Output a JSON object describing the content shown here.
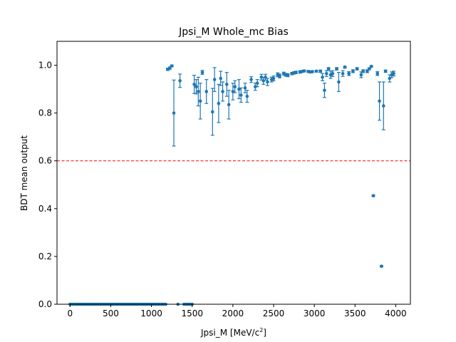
{
  "chart_data": {
    "type": "scatter",
    "title": "Jpsi_M Whole_mc Bias",
    "xlabel": "Jpsi_M [MeV/c",
    "xlabel_sup": "2",
    "xlabel_suffix": "]",
    "ylabel": "BDT mean output",
    "xlim": [
      -160,
      4180
    ],
    "ylim": [
      0.0,
      1.1
    ],
    "xticks": [
      0,
      500,
      1000,
      1500,
      2000,
      2500,
      3000,
      3500,
      4000
    ],
    "yticks": [
      0.0,
      0.2,
      0.4,
      0.6,
      0.8,
      1.0
    ],
    "xtick_labels": [
      "0",
      "500",
      "1000",
      "1500",
      "2000",
      "2500",
      "3000",
      "3500",
      "4000"
    ],
    "ytick_labels": [
      "0.0",
      "0.2",
      "0.4",
      "0.6",
      "0.8",
      "1.0"
    ],
    "grid": false,
    "threshold": {
      "y": 0.6,
      "color": "#ff0000",
      "style": "dashed"
    },
    "marker_color": "#1f77b4",
    "points": [
      {
        "x": 0,
        "y": 0.0,
        "err": 0.0
      },
      {
        "x": 25,
        "y": 0.0,
        "err": 0.0
      },
      {
        "x": 50,
        "y": 0.0,
        "err": 0.0
      },
      {
        "x": 75,
        "y": 0.0,
        "err": 0.0
      },
      {
        "x": 100,
        "y": 0.0,
        "err": 0.0
      },
      {
        "x": 125,
        "y": 0.0,
        "err": 0.0
      },
      {
        "x": 150,
        "y": 0.0,
        "err": 0.0
      },
      {
        "x": 175,
        "y": 0.0,
        "err": 0.0
      },
      {
        "x": 200,
        "y": 0.0,
        "err": 0.0
      },
      {
        "x": 225,
        "y": 0.0,
        "err": 0.0
      },
      {
        "x": 250,
        "y": 0.0,
        "err": 0.0
      },
      {
        "x": 275,
        "y": 0.0,
        "err": 0.0
      },
      {
        "x": 300,
        "y": 0.0,
        "err": 0.0
      },
      {
        "x": 325,
        "y": 0.0,
        "err": 0.0
      },
      {
        "x": 350,
        "y": 0.0,
        "err": 0.0
      },
      {
        "x": 375,
        "y": 0.0,
        "err": 0.0
      },
      {
        "x": 400,
        "y": 0.0,
        "err": 0.0
      },
      {
        "x": 425,
        "y": 0.0,
        "err": 0.0
      },
      {
        "x": 450,
        "y": 0.0,
        "err": 0.0
      },
      {
        "x": 475,
        "y": 0.0,
        "err": 0.0
      },
      {
        "x": 500,
        "y": 0.0,
        "err": 0.0
      },
      {
        "x": 525,
        "y": 0.0,
        "err": 0.0
      },
      {
        "x": 550,
        "y": 0.0,
        "err": 0.0
      },
      {
        "x": 575,
        "y": 0.0,
        "err": 0.0
      },
      {
        "x": 600,
        "y": 0.0,
        "err": 0.0
      },
      {
        "x": 625,
        "y": 0.0,
        "err": 0.0
      },
      {
        "x": 650,
        "y": 0.0,
        "err": 0.0
      },
      {
        "x": 675,
        "y": 0.0,
        "err": 0.0
      },
      {
        "x": 700,
        "y": 0.0,
        "err": 0.0
      },
      {
        "x": 725,
        "y": 0.0,
        "err": 0.0
      },
      {
        "x": 750,
        "y": 0.0,
        "err": 0.0
      },
      {
        "x": 775,
        "y": 0.0,
        "err": 0.0
      },
      {
        "x": 800,
        "y": 0.0,
        "err": 0.0
      },
      {
        "x": 825,
        "y": 0.0,
        "err": 0.0
      },
      {
        "x": 850,
        "y": 0.0,
        "err": 0.0
      },
      {
        "x": 875,
        "y": 0.0,
        "err": 0.0
      },
      {
        "x": 900,
        "y": 0.0,
        "err": 0.0
      },
      {
        "x": 925,
        "y": 0.0,
        "err": 0.0
      },
      {
        "x": 950,
        "y": 0.0,
        "err": 0.0
      },
      {
        "x": 975,
        "y": 0.0,
        "err": 0.0
      },
      {
        "x": 1000,
        "y": 0.0,
        "err": 0.0
      },
      {
        "x": 1025,
        "y": 0.0,
        "err": 0.0
      },
      {
        "x": 1050,
        "y": 0.0,
        "err": 0.0
      },
      {
        "x": 1075,
        "y": 0.0,
        "err": 0.0
      },
      {
        "x": 1100,
        "y": 0.0,
        "err": 0.0
      },
      {
        "x": 1125,
        "y": 0.0,
        "err": 0.0
      },
      {
        "x": 1150,
        "y": 0.0,
        "err": 0.0
      },
      {
        "x": 1175,
        "y": 0.0,
        "err": 0.0
      },
      {
        "x": 1200,
        "y": 0.983,
        "err": 0.005
      },
      {
        "x": 1225,
        "y": 0.988,
        "err": 0.005
      },
      {
        "x": 1250,
        "y": 0.997,
        "err": 0.004
      },
      {
        "x": 1275,
        "y": 0.8,
        "err": 0.138
      },
      {
        "x": 1325,
        "y": 0.0,
        "err": 0.0
      },
      {
        "x": 1350,
        "y": 0.935,
        "err": 0.028
      },
      {
        "x": 1400,
        "y": 0.0,
        "err": 0.0
      },
      {
        "x": 1425,
        "y": 0.0,
        "err": 0.0
      },
      {
        "x": 1450,
        "y": 0.0,
        "err": 0.0
      },
      {
        "x": 1475,
        "y": 0.0,
        "err": 0.0
      },
      {
        "x": 1500,
        "y": 0.0,
        "err": 0.0
      },
      {
        "x": 1525,
        "y": 0.92,
        "err": 0.038
      },
      {
        "x": 1550,
        "y": 0.91,
        "err": 0.03
      },
      {
        "x": 1575,
        "y": 0.89,
        "err": 0.06
      },
      {
        "x": 1600,
        "y": 0.85,
        "err": 0.075
      },
      {
        "x": 1625,
        "y": 0.97,
        "err": 0.008
      },
      {
        "x": 1675,
        "y": 0.89,
        "err": 0.05
      },
      {
        "x": 1750,
        "y": 0.805,
        "err": 0.098
      },
      {
        "x": 1775,
        "y": 0.94,
        "err": 0.05
      },
      {
        "x": 1825,
        "y": 0.84,
        "err": 0.08
      },
      {
        "x": 1850,
        "y": 0.945,
        "err": 0.03
      },
      {
        "x": 1875,
        "y": 0.89,
        "err": 0.04
      },
      {
        "x": 1925,
        "y": 0.92,
        "err": 0.05
      },
      {
        "x": 1950,
        "y": 0.835,
        "err": 0.06
      },
      {
        "x": 2000,
        "y": 0.89,
        "err": 0.035
      },
      {
        "x": 2025,
        "y": 0.91,
        "err": 0.025
      },
      {
        "x": 2075,
        "y": 0.9,
        "err": 0.04
      },
      {
        "x": 2100,
        "y": 0.875,
        "err": 0.03
      },
      {
        "x": 2150,
        "y": 0.905,
        "err": 0.02
      },
      {
        "x": 2175,
        "y": 0.87,
        "err": 0.025
      },
      {
        "x": 2225,
        "y": 0.94,
        "err": 0.012
      },
      {
        "x": 2275,
        "y": 0.91,
        "err": 0.015
      },
      {
        "x": 2300,
        "y": 0.925,
        "err": 0.015
      },
      {
        "x": 2350,
        "y": 0.95,
        "err": 0.012
      },
      {
        "x": 2375,
        "y": 0.935,
        "err": 0.015
      },
      {
        "x": 2400,
        "y": 0.95,
        "err": 0.012
      },
      {
        "x": 2425,
        "y": 0.93,
        "err": 0.015
      },
      {
        "x": 2475,
        "y": 0.94,
        "err": 0.01
      },
      {
        "x": 2500,
        "y": 0.945,
        "err": 0.01
      },
      {
        "x": 2550,
        "y": 0.96,
        "err": 0.008
      },
      {
        "x": 2575,
        "y": 0.955,
        "err": 0.008
      },
      {
        "x": 2625,
        "y": 0.965,
        "err": 0.006
      },
      {
        "x": 2650,
        "y": 0.96,
        "err": 0.006
      },
      {
        "x": 2675,
        "y": 0.958,
        "err": 0.006
      },
      {
        "x": 2725,
        "y": 0.965,
        "err": 0.005
      },
      {
        "x": 2750,
        "y": 0.968,
        "err": 0.005
      },
      {
        "x": 2775,
        "y": 0.97,
        "err": 0.005
      },
      {
        "x": 2825,
        "y": 0.972,
        "err": 0.005
      },
      {
        "x": 2850,
        "y": 0.974,
        "err": 0.004
      },
      {
        "x": 2875,
        "y": 0.976,
        "err": 0.004
      },
      {
        "x": 2925,
        "y": 0.974,
        "err": 0.004
      },
      {
        "x": 2950,
        "y": 0.972,
        "err": 0.004
      },
      {
        "x": 2975,
        "y": 0.973,
        "err": 0.004
      },
      {
        "x": 3025,
        "y": 0.975,
        "err": 0.004
      },
      {
        "x": 3075,
        "y": 0.975,
        "err": 0.005
      },
      {
        "x": 3100,
        "y": 0.95,
        "err": 0.015
      },
      {
        "x": 3125,
        "y": 0.895,
        "err": 0.03
      },
      {
        "x": 3150,
        "y": 0.965,
        "err": 0.012
      },
      {
        "x": 3175,
        "y": 0.985,
        "err": 0.005
      },
      {
        "x": 3200,
        "y": 0.96,
        "err": 0.015
      },
      {
        "x": 3225,
        "y": 0.965,
        "err": 0.012
      },
      {
        "x": 3275,
        "y": 0.985,
        "err": 0.005
      },
      {
        "x": 3300,
        "y": 0.93,
        "err": 0.04
      },
      {
        "x": 3350,
        "y": 0.965,
        "err": 0.012
      },
      {
        "x": 3375,
        "y": 0.992,
        "err": 0.004
      },
      {
        "x": 3425,
        "y": 0.965,
        "err": 0.008
      },
      {
        "x": 3475,
        "y": 0.975,
        "err": 0.006
      },
      {
        "x": 3525,
        "y": 0.985,
        "err": 0.005
      },
      {
        "x": 3575,
        "y": 0.96,
        "err": 0.012
      },
      {
        "x": 3600,
        "y": 0.975,
        "err": 0.006
      },
      {
        "x": 3650,
        "y": 0.975,
        "err": 0.006
      },
      {
        "x": 3675,
        "y": 0.985,
        "err": 0.004
      },
      {
        "x": 3700,
        "y": 0.995,
        "err": 0.003
      },
      {
        "x": 3725,
        "y": 0.454,
        "err": 0.003
      },
      {
        "x": 3775,
        "y": 0.965,
        "err": 0.008
      },
      {
        "x": 3800,
        "y": 0.85,
        "err": 0.08
      },
      {
        "x": 3825,
        "y": 0.159,
        "err": 0.003
      },
      {
        "x": 3850,
        "y": 0.83,
        "err": 0.1
      },
      {
        "x": 3875,
        "y": 0.975,
        "err": 0.005
      },
      {
        "x": 3925,
        "y": 0.945,
        "err": 0.015
      },
      {
        "x": 3950,
        "y": 0.96,
        "err": 0.012
      },
      {
        "x": 3975,
        "y": 0.965,
        "err": 0.01
      }
    ]
  }
}
